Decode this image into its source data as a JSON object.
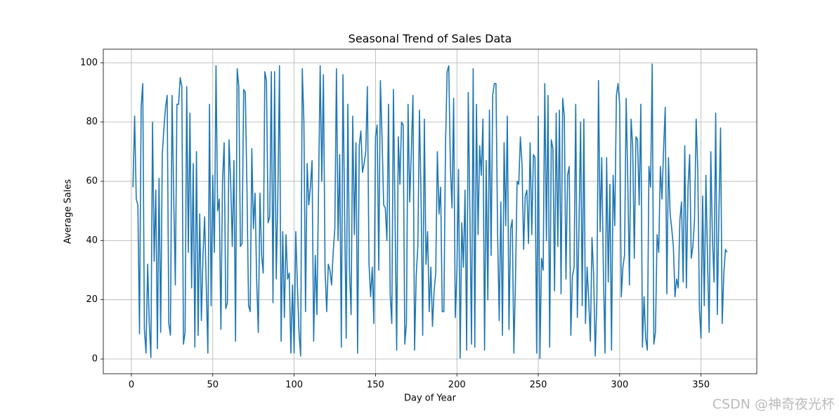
{
  "chart_data": {
    "type": "line",
    "title": "Seasonal Trend of Sales Data",
    "xlabel": "Day of Year",
    "ylabel": "Average Sales",
    "watermark": "CSDN @神奇夜光杯",
    "x": [
      1,
      2,
      3,
      4,
      5,
      6,
      7,
      8,
      9,
      10,
      11,
      12,
      13,
      14,
      15,
      16,
      17,
      18,
      19,
      20,
      21,
      22,
      23,
      24,
      25,
      26,
      27,
      28,
      29,
      30,
      31,
      32,
      33,
      34,
      35,
      36,
      37,
      38,
      39,
      40,
      41,
      42,
      43,
      44,
      45,
      46,
      47,
      48,
      49,
      50,
      51,
      52,
      53,
      54,
      55,
      56,
      57,
      58,
      59,
      60,
      61,
      62,
      63,
      64,
      65,
      66,
      67,
      68,
      69,
      70,
      71,
      72,
      73,
      74,
      75,
      76,
      77,
      78,
      79,
      80,
      81,
      82,
      83,
      84,
      85,
      86,
      87,
      88,
      89,
      90,
      91,
      92,
      93,
      94,
      95,
      96,
      97,
      98,
      99,
      100,
      101,
      102,
      103,
      104,
      105,
      106,
      107,
      108,
      109,
      110,
      111,
      112,
      113,
      114,
      115,
      116,
      117,
      118,
      119,
      120,
      121,
      122,
      123,
      124,
      125,
      126,
      127,
      128,
      129,
      130,
      131,
      132,
      133,
      134,
      135,
      136,
      137,
      138,
      139,
      140,
      141,
      142,
      143,
      144,
      145,
      146,
      147,
      148,
      149,
      150,
      151,
      152,
      153,
      154,
      155,
      156,
      157,
      158,
      159,
      160,
      161,
      162,
      163,
      164,
      165,
      166,
      167,
      168,
      169,
      170,
      171,
      172,
      173,
      174,
      175,
      176,
      177,
      178,
      179,
      180,
      181,
      182,
      183,
      184,
      185,
      186,
      187,
      188,
      189,
      190,
      191,
      192,
      193,
      194,
      195,
      196,
      197,
      198,
      199,
      200,
      201,
      202,
      203,
      204,
      205,
      206,
      207,
      208,
      209,
      210,
      211,
      212,
      213,
      214,
      215,
      216,
      217,
      218,
      219,
      220,
      221,
      222,
      223,
      224,
      225,
      226,
      227,
      228,
      229,
      230,
      231,
      232,
      233,
      234,
      235,
      236,
      237,
      238,
      239,
      240,
      241,
      242,
      243,
      244,
      245,
      246,
      247,
      248,
      249,
      250,
      251,
      252,
      253,
      254,
      255,
      256,
      257,
      258,
      259,
      260,
      261,
      262,
      263,
      264,
      265,
      266,
      267,
      268,
      269,
      270,
      271,
      272,
      273,
      274,
      275,
      276,
      277,
      278,
      279,
      280,
      281,
      282,
      283,
      284,
      285,
      286,
      287,
      288,
      289,
      290,
      291,
      292,
      293,
      294,
      295,
      296,
      297,
      298,
      299,
      300,
      301,
      302,
      303,
      304,
      305,
      306,
      307,
      308,
      309,
      310,
      311,
      312,
      313,
      314,
      315,
      316,
      317,
      318,
      319,
      320,
      321,
      322,
      323,
      324,
      325,
      326,
      327,
      328,
      329,
      330,
      331,
      332,
      333,
      334,
      335,
      336,
      337,
      338,
      339,
      340,
      341,
      342,
      343,
      344,
      345,
      346,
      347,
      348,
      349,
      350,
      351,
      352,
      353,
      354,
      355,
      356,
      357,
      358,
      359,
      360,
      361,
      362,
      363,
      364,
      365,
      366
    ],
    "series": [
      {
        "name": "Average Sales",
        "color": "#1f77b4",
        "values": [
          58,
          82,
          54,
          52,
          8.5,
          85,
          93,
          10,
          2,
          32,
          12,
          0.5,
          80,
          33,
          57,
          3.5,
          61,
          9,
          69,
          78,
          85,
          89,
          12,
          8,
          89,
          55,
          25,
          86,
          86,
          95,
          92,
          5,
          9,
          92,
          36,
          83,
          24,
          66,
          4,
          70,
          8,
          49,
          13,
          35,
          48,
          25,
          2,
          86,
          18,
          62,
          36,
          99,
          50,
          54,
          10,
          60,
          73,
          17,
          19,
          74,
          60,
          38,
          67,
          6,
          98,
          92,
          38,
          39,
          91,
          90,
          58,
          18,
          16,
          71,
          44,
          56,
          26,
          9,
          56,
          35,
          29,
          97,
          94,
          46,
          48,
          97,
          19,
          97,
          27,
          55,
          99,
          6,
          43,
          14,
          42,
          27,
          29,
          2,
          25,
          2,
          43,
          25,
          9,
          1,
          98,
          80,
          16,
          66,
          52,
          58,
          67,
          6,
          35,
          15,
          57,
          99,
          60,
          96,
          30,
          16,
          32,
          30,
          25,
          36,
          44,
          98,
          40,
          69,
          4,
          96,
          50,
          7,
          86,
          30,
          15,
          82,
          42,
          73,
          2,
          72,
          77,
          63,
          66,
          70,
          92,
          32,
          21,
          31,
          12,
          75,
          79,
          30,
          94,
          75,
          52,
          51,
          40,
          86,
          22,
          12,
          91,
          48,
          3,
          75,
          59,
          80,
          79,
          5,
          12,
          86,
          53,
          70,
          89,
          3,
          28,
          38,
          84,
          54,
          8,
          81,
          32,
          43,
          16,
          31,
          11,
          23,
          29,
          70,
          49,
          58,
          16,
          16,
          72,
          97,
          99,
          65,
          51,
          88,
          14,
          29,
          64,
          0.3,
          46,
          31,
          57,
          3,
          90,
          48,
          5,
          98,
          4,
          86,
          42,
          72,
          62,
          81,
          3,
          67,
          20,
          84,
          35,
          89,
          93,
          93,
          43,
          13,
          53,
          8,
          73,
          45,
          82,
          10,
          44,
          47,
          2,
          27,
          60,
          59,
          75,
          66,
          37,
          55,
          57,
          39,
          73,
          42,
          69,
          68,
          2,
          82,
          0.2,
          34,
          30,
          93,
          40,
          89,
          4,
          74,
          71,
          23,
          83,
          38,
          84,
          22,
          88,
          82,
          27,
          62,
          65,
          8,
          28,
          31,
          86,
          14,
          44,
          80,
          18,
          81,
          12,
          31,
          20,
          6,
          41,
          29,
          1,
          20,
          94,
          43,
          68,
          30,
          2,
          68,
          26,
          59,
          3,
          62,
          45,
          89,
          93,
          86,
          21,
          31,
          35,
          88,
          60,
          25,
          81,
          72,
          34,
          75,
          74,
          52,
          86,
          4,
          21,
          7,
          3,
          65,
          58,
          99.6,
          5,
          9,
          42,
          36,
          65,
          54,
          71,
          85,
          22,
          68,
          49,
          44,
          38,
          21,
          27,
          24,
          47,
          53,
          26,
          72,
          24,
          58,
          69,
          34,
          38,
          47,
          81,
          64,
          17,
          7,
          55,
          18,
          62,
          33,
          9,
          70,
          41,
          26,
          83,
          15,
          50,
          78,
          12,
          29,
          37,
          36
        ]
      }
    ],
    "xlim": [
      -17.25,
      384.25
    ],
    "ylim": [
      -4.98,
      104.6
    ],
    "xticks": [
      0,
      50,
      100,
      150,
      200,
      250,
      300,
      350
    ],
    "yticks": [
      0,
      20,
      40,
      60,
      80,
      100
    ],
    "grid": true
  }
}
